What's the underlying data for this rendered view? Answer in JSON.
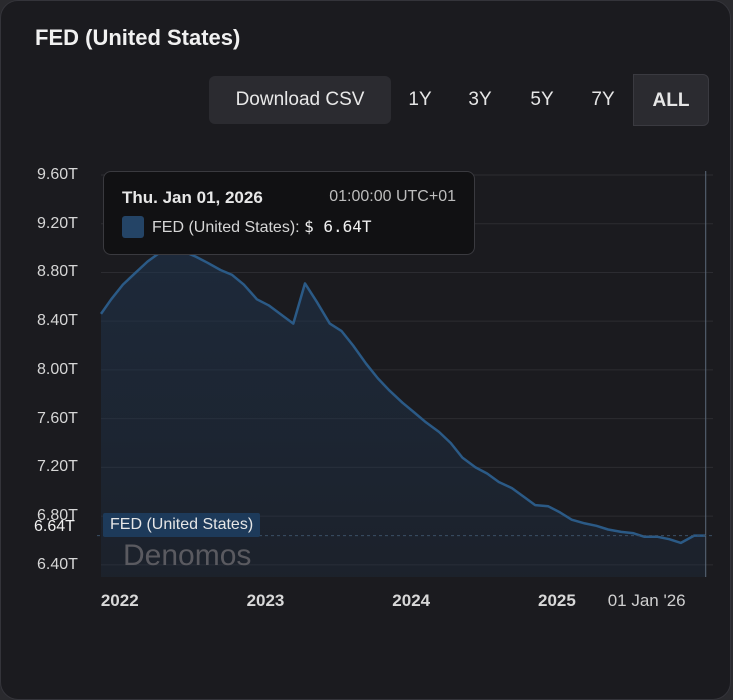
{
  "title": "FED (United States)",
  "toolbar": {
    "download_label": "Download CSV",
    "ranges": [
      "1Y",
      "3Y",
      "5Y",
      "7Y",
      "ALL"
    ],
    "active_range": "ALL"
  },
  "tooltip": {
    "date": "Thu. Jan 01, 2026",
    "time": "01:00:00 UTC+01",
    "series": "FED (United States):",
    "value": "$ 6.64T"
  },
  "watermark": "Denomos",
  "current_value_badge": "6.64T",
  "series_label": "FED (United States)",
  "colors": {
    "line": "#2b5a86",
    "fill": "#1f3550",
    "background": "#1b1b1f"
  },
  "chart_data": {
    "type": "area",
    "ylim": [
      6.3,
      9.6
    ],
    "yticks": [
      {
        "value": 9.6,
        "label": "9.60T"
      },
      {
        "value": 9.2,
        "label": "9.20T"
      },
      {
        "value": 8.8,
        "label": "8.80T"
      },
      {
        "value": 8.4,
        "label": "8.40T"
      },
      {
        "value": 8.0,
        "label": "8.00T"
      },
      {
        "value": 7.6,
        "label": "7.60T"
      },
      {
        "value": 7.2,
        "label": "7.20T"
      },
      {
        "value": 6.8,
        "label": "6.80T"
      },
      {
        "value": 6.4,
        "label": "6.40T"
      }
    ],
    "xticks": [
      {
        "value": 2022.0,
        "label": "2022"
      },
      {
        "value": 2023.0,
        "label": "2023"
      },
      {
        "value": 2024.0,
        "label": "2024"
      },
      {
        "value": 2025.0,
        "label": "2025"
      }
    ],
    "crosshair": {
      "x": 2026.0,
      "label": "01 Jan '26"
    },
    "xlim": [
      2021.85,
      2026.05
    ],
    "series": [
      {
        "name": "FED (United States)",
        "x": [
          2021.85,
          2021.92,
          2022.0,
          2022.08,
          2022.17,
          2022.25,
          2022.33,
          2022.42,
          2022.5,
          2022.58,
          2022.67,
          2022.75,
          2022.83,
          2022.92,
          2023.0,
          2023.08,
          2023.17,
          2023.25,
          2023.33,
          2023.42,
          2023.5,
          2023.58,
          2023.67,
          2023.75,
          2023.83,
          2023.92,
          2024.0,
          2024.08,
          2024.17,
          2024.25,
          2024.33,
          2024.42,
          2024.5,
          2024.58,
          2024.67,
          2024.75,
          2024.83,
          2024.92,
          2025.0,
          2025.08,
          2025.17,
          2025.25,
          2025.33,
          2025.42,
          2025.5,
          2025.58,
          2025.67,
          2025.75,
          2025.83,
          2025.92,
          2026.0
        ],
        "values": [
          8.46,
          8.58,
          8.7,
          8.79,
          8.89,
          8.96,
          8.97,
          8.97,
          8.93,
          8.88,
          8.82,
          8.78,
          8.7,
          8.58,
          8.53,
          8.46,
          8.38,
          8.71,
          8.56,
          8.38,
          8.32,
          8.2,
          8.05,
          7.93,
          7.83,
          7.73,
          7.65,
          7.57,
          7.49,
          7.4,
          7.28,
          7.2,
          7.15,
          7.08,
          7.03,
          6.96,
          6.89,
          6.88,
          6.83,
          6.77,
          6.74,
          6.72,
          6.69,
          6.67,
          6.66,
          6.63,
          6.63,
          6.61,
          6.58,
          6.64,
          6.64
        ]
      }
    ]
  }
}
